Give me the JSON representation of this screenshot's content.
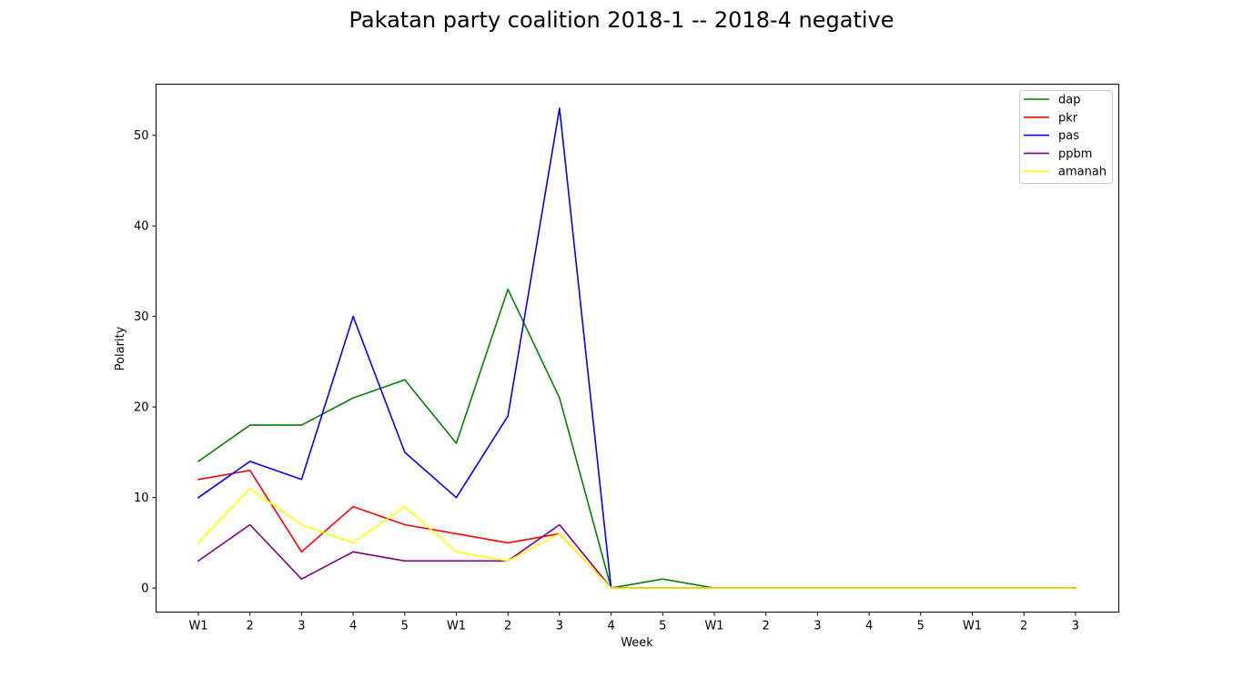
{
  "chart_data": {
    "type": "line",
    "title": "Pakatan party coalition 2018-1 -- 2018-4 negative",
    "xlabel": "Week",
    "ylabel": "Polarity",
    "categories": [
      "W1",
      "2",
      "3",
      "4",
      "5",
      "W1",
      "2",
      "3",
      "4",
      "5",
      "W1",
      "2",
      "3",
      "4",
      "5",
      "W1",
      "2",
      "3"
    ],
    "ylim": [
      -2.65,
      55.65
    ],
    "yticks": [
      0,
      10,
      20,
      30,
      40,
      50
    ],
    "grid": false,
    "legend_position": "top-right",
    "series": [
      {
        "name": "dap",
        "color": "#008000",
        "values": [
          14,
          18,
          18,
          21,
          23,
          16,
          33,
          21,
          0,
          1,
          0,
          0,
          0,
          0,
          0,
          0,
          0,
          0
        ]
      },
      {
        "name": "pkr",
        "color": "#ff0000",
        "values": [
          12,
          13,
          4,
          9,
          7,
          6,
          5,
          6,
          0,
          0,
          0,
          0,
          0,
          0,
          0,
          0,
          0,
          0
        ]
      },
      {
        "name": "pas",
        "color": "#0000ff",
        "values": [
          10,
          14,
          12,
          30,
          15,
          10,
          19,
          53,
          0,
          0,
          0,
          0,
          0,
          0,
          0,
          0,
          0,
          0
        ]
      },
      {
        "name": "ppbm",
        "color": "#800080",
        "values": [
          3,
          7,
          1,
          4,
          3,
          3,
          3,
          7,
          0,
          0,
          0,
          0,
          0,
          0,
          0,
          0,
          0,
          0
        ]
      },
      {
        "name": "amanah",
        "color": "#ffff00",
        "values": [
          5,
          11,
          7,
          5,
          9,
          4,
          3,
          6,
          0,
          0,
          0,
          0,
          0,
          0,
          0,
          0,
          0,
          0
        ]
      }
    ]
  }
}
